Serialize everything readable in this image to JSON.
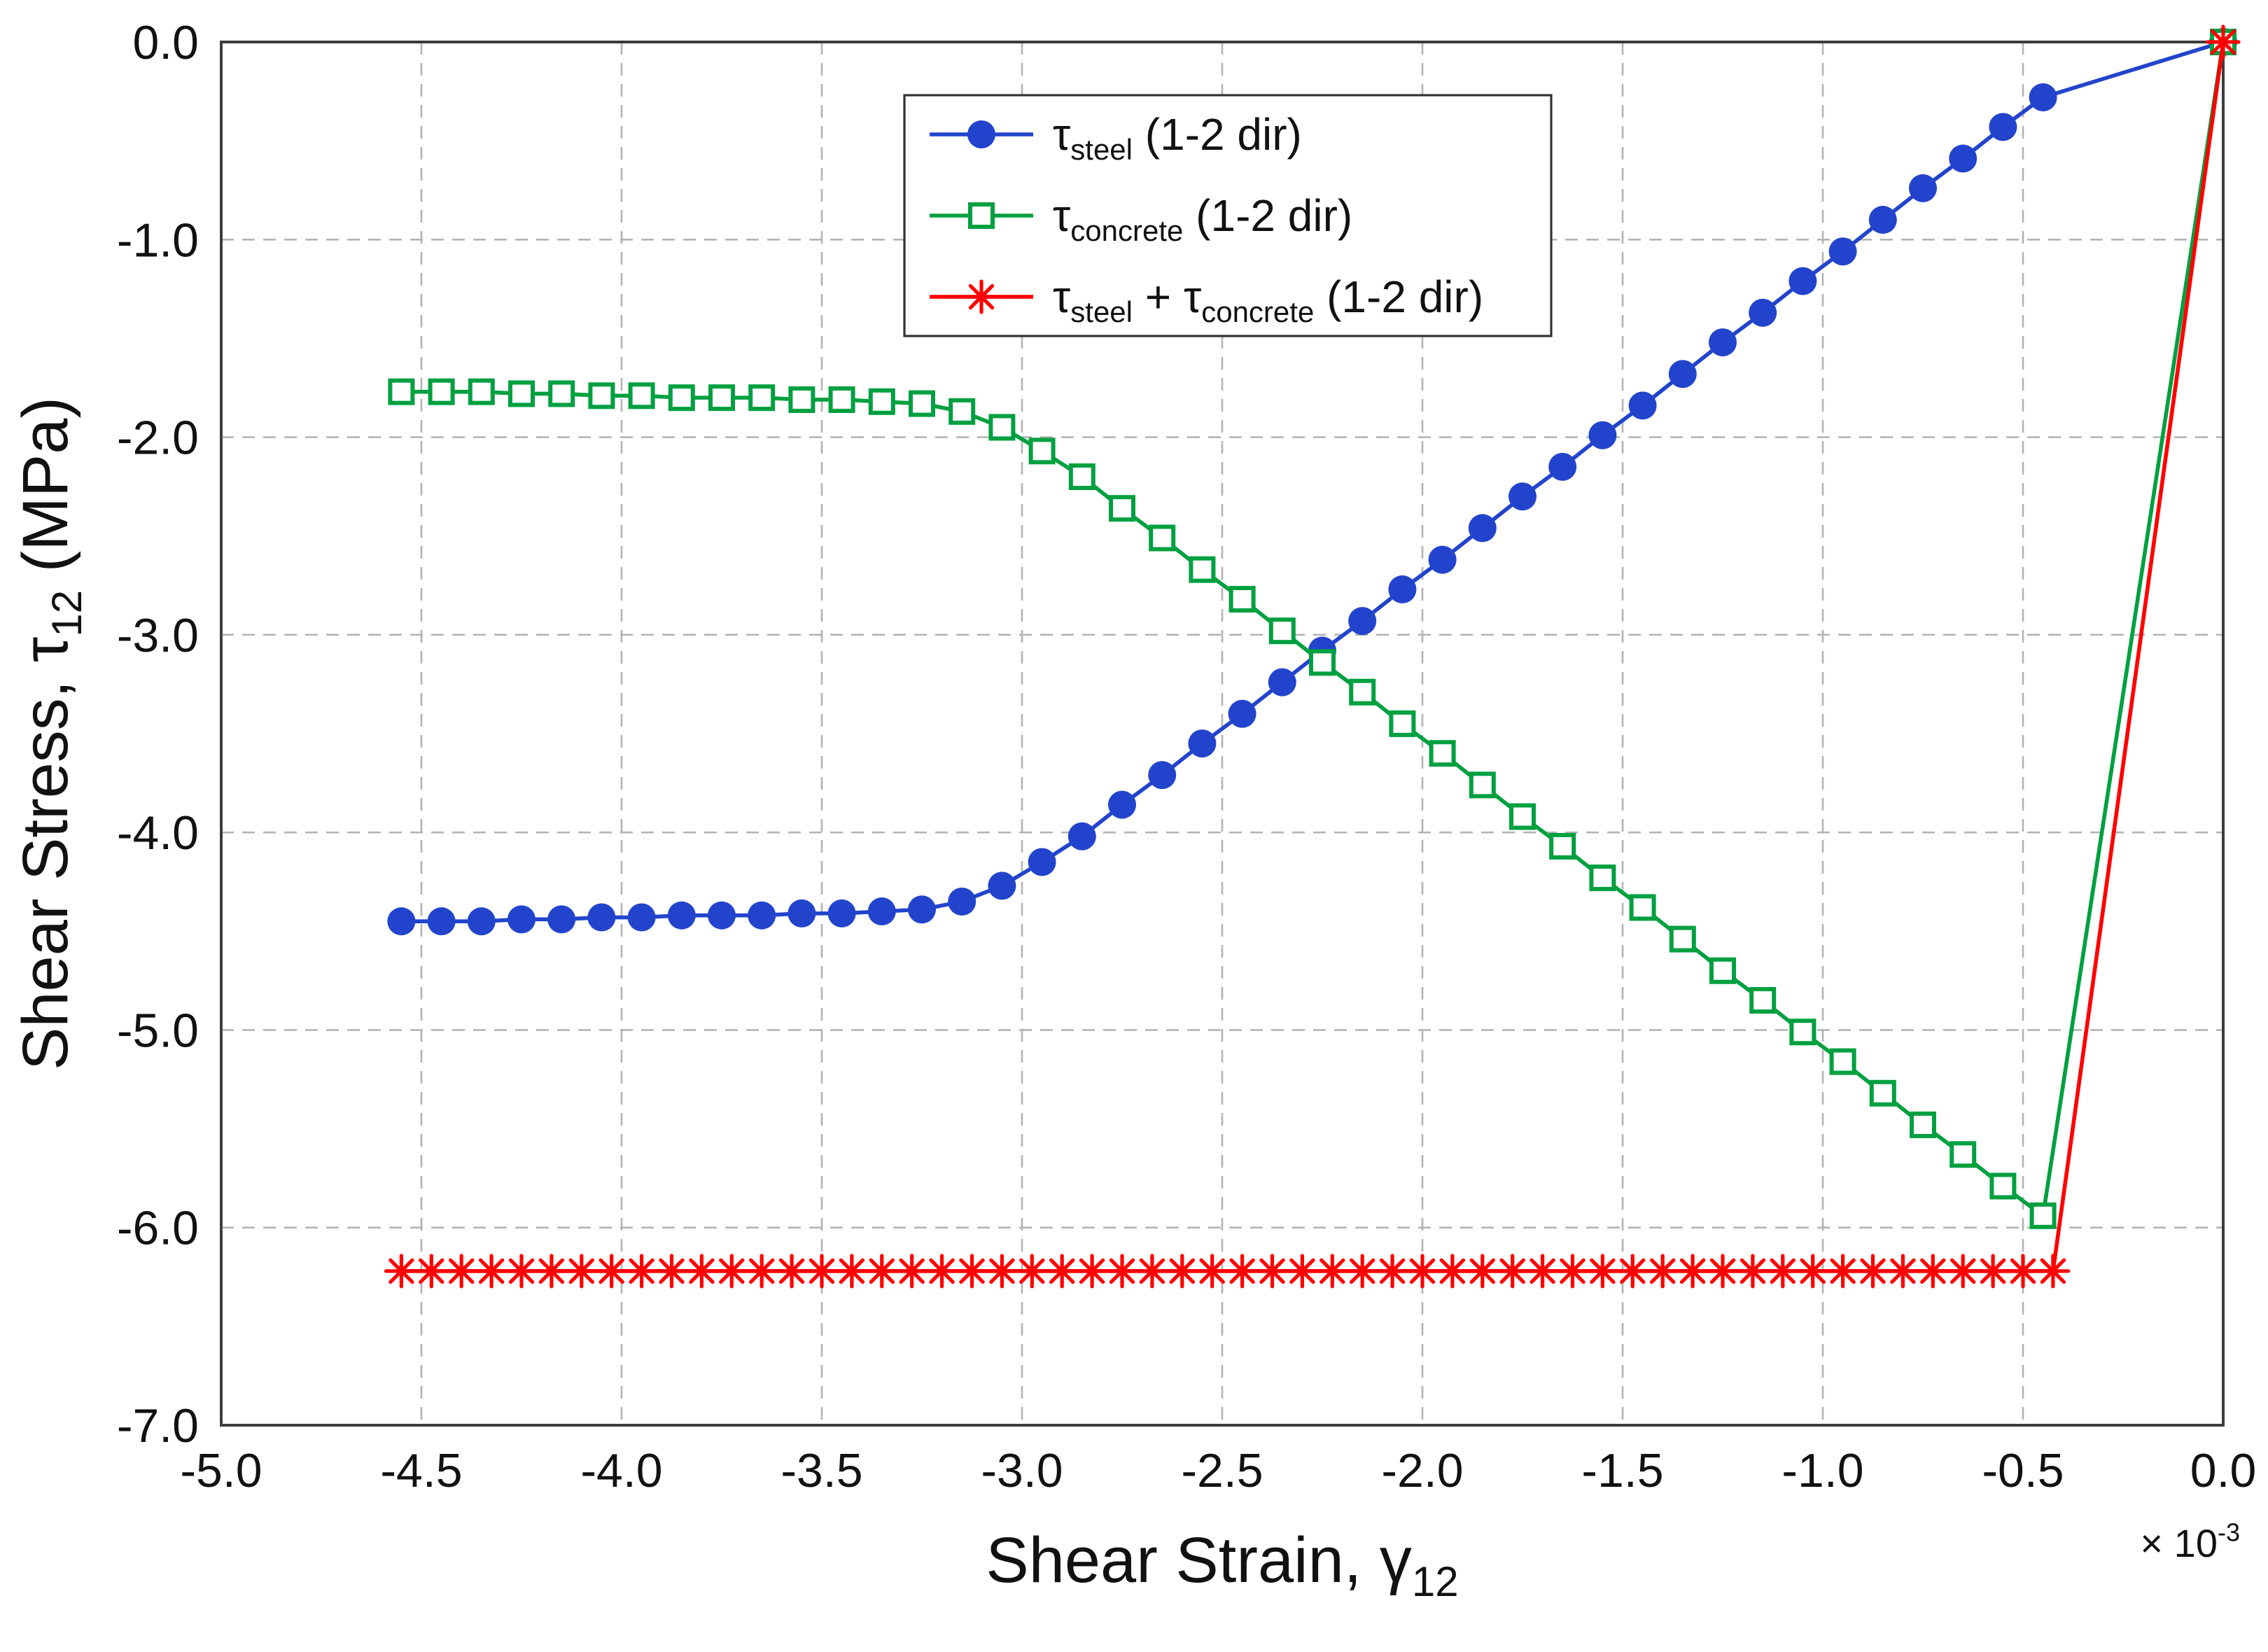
{
  "chart_data": {
    "type": "line",
    "title": "",
    "grid": true,
    "legend_position": "top-center",
    "xlim": [
      -5.0,
      0.0
    ],
    "ylim": [
      -7.0,
      0.0
    ],
    "x_ticks": [
      -5.0,
      -4.5,
      -4.0,
      -3.5,
      -3.0,
      -2.5,
      -2.0,
      -1.5,
      -1.0,
      -0.5,
      0.0
    ],
    "x_tick_labels": [
      "-5.0",
      "-4.5",
      "-4.0",
      "-3.5",
      "-3.0",
      "-2.5",
      "-2.0",
      "-1.5",
      "-1.0",
      "-0.5",
      "0.0"
    ],
    "y_ticks": [
      0.0,
      -1.0,
      -2.0,
      -3.0,
      -4.0,
      -5.0,
      -6.0,
      -7.0
    ],
    "y_tick_labels": [
      "0.0",
      "-1.0",
      "-2.0",
      "-3.0",
      "-4.0",
      "-5.0",
      "-6.0",
      "-7.0"
    ],
    "xlabel_parts": [
      {
        "t": "Shear Strain, γ"
      },
      {
        "t": "12",
        "sub": true
      }
    ],
    "ylabel_parts": [
      {
        "t": "Shear Stress,  τ"
      },
      {
        "t": "12",
        "sub": true
      },
      {
        "t": " (MPa)"
      }
    ],
    "x_multiplier_parts": [
      {
        "t": "× 10"
      },
      {
        "t": "-3",
        "sup": true
      }
    ],
    "colors": {
      "steel": "#2244cc",
      "concrete": "#00a040",
      "sum": "#ff0000",
      "grid": "#b3b3b3",
      "frame": "#3c3c3c",
      "legend_border": "#333333",
      "background": "#ffffff"
    },
    "legend": {
      "entries": [
        {
          "marker": "circle-filled",
          "color_key": "steel",
          "parts": [
            {
              "t": "τ"
            },
            {
              "t": "steel",
              "sub": true
            },
            {
              "t": " (1-2 dir)"
            }
          ]
        },
        {
          "marker": "square-open",
          "color_key": "concrete",
          "parts": [
            {
              "t": "τ"
            },
            {
              "t": "concrete",
              "sub": true
            },
            {
              "t": " (1-2 dir)"
            }
          ]
        },
        {
          "marker": "asterisk",
          "color_key": "sum",
          "parts": [
            {
              "t": "τ"
            },
            {
              "t": "steel",
              "sub": true
            },
            {
              "t": " + τ"
            },
            {
              "t": "concrete",
              "sub": true
            },
            {
              "t": " (1-2 dir)"
            }
          ]
        }
      ]
    },
    "series": [
      {
        "name": "tau_steel (1-2 dir)",
        "marker": "circle-filled",
        "color_key": "steel",
        "x": [
          -4.55,
          -4.45,
          -4.35,
          -4.25,
          -4.15,
          -4.05,
          -3.95,
          -3.85,
          -3.75,
          -3.65,
          -3.55,
          -3.45,
          -3.35,
          -3.25,
          -3.15,
          -3.05,
          -2.95,
          -2.85,
          -2.75,
          -2.65,
          -2.55,
          -2.45,
          -2.35,
          -2.25,
          -2.15,
          -2.05,
          -1.95,
          -1.85,
          -1.75,
          -1.65,
          -1.55,
          -1.45,
          -1.35,
          -1.25,
          -1.15,
          -1.05,
          -0.95,
          -0.85,
          -0.75,
          -0.65,
          -0.55,
          -0.45,
          0.0
        ],
        "y": [
          -4.45,
          -4.45,
          -4.45,
          -4.44,
          -4.44,
          -4.43,
          -4.43,
          -4.42,
          -4.42,
          -4.42,
          -4.41,
          -4.41,
          -4.4,
          -4.39,
          -4.35,
          -4.27,
          -4.15,
          -4.02,
          -3.86,
          -3.71,
          -3.55,
          -3.4,
          -3.24,
          -3.08,
          -2.93,
          -2.77,
          -2.62,
          -2.46,
          -2.3,
          -2.15,
          -1.99,
          -1.84,
          -1.68,
          -1.52,
          -1.37,
          -1.21,
          -1.06,
          -0.9,
          -0.74,
          -0.59,
          -0.43,
          -0.28,
          0.0
        ]
      },
      {
        "name": "tau_concrete (1-2 dir)",
        "marker": "square-open",
        "color_key": "concrete",
        "x": [
          -4.55,
          -4.45,
          -4.35,
          -4.25,
          -4.15,
          -4.05,
          -3.95,
          -3.85,
          -3.75,
          -3.65,
          -3.55,
          -3.45,
          -3.35,
          -3.25,
          -3.15,
          -3.05,
          -2.95,
          -2.85,
          -2.75,
          -2.65,
          -2.55,
          -2.45,
          -2.35,
          -2.25,
          -2.15,
          -2.05,
          -1.95,
          -1.85,
          -1.75,
          -1.65,
          -1.55,
          -1.45,
          -1.35,
          -1.25,
          -1.15,
          -1.05,
          -0.95,
          -0.85,
          -0.75,
          -0.65,
          -0.55,
          -0.45,
          0.0
        ],
        "y": [
          -1.77,
          -1.77,
          -1.77,
          -1.78,
          -1.78,
          -1.79,
          -1.79,
          -1.8,
          -1.8,
          -1.8,
          -1.81,
          -1.81,
          -1.82,
          -1.83,
          -1.87,
          -1.95,
          -2.07,
          -2.2,
          -2.36,
          -2.51,
          -2.67,
          -2.82,
          -2.98,
          -3.14,
          -3.29,
          -3.45,
          -3.6,
          -3.76,
          -3.92,
          -4.07,
          -4.23,
          -4.38,
          -4.54,
          -4.7,
          -4.85,
          -5.01,
          -5.16,
          -5.32,
          -5.48,
          -5.63,
          -5.79,
          -5.94,
          0.0
        ]
      },
      {
        "name": "tau_steel + tau_concrete (1-2 dir)",
        "marker": "asterisk",
        "color_key": "sum",
        "x": [
          -4.55,
          -4.475,
          -4.4,
          -4.325,
          -4.25,
          -4.175,
          -4.1,
          -4.025,
          -3.95,
          -3.875,
          -3.8,
          -3.725,
          -3.65,
          -3.575,
          -3.5,
          -3.425,
          -3.35,
          -3.275,
          -3.2,
          -3.125,
          -3.05,
          -2.975,
          -2.9,
          -2.825,
          -2.75,
          -2.675,
          -2.6,
          -2.525,
          -2.45,
          -2.375,
          -2.3,
          -2.225,
          -2.15,
          -2.075,
          -2.0,
          -1.925,
          -1.85,
          -1.775,
          -1.7,
          -1.625,
          -1.55,
          -1.475,
          -1.4,
          -1.325,
          -1.25,
          -1.175,
          -1.1,
          -1.025,
          -0.95,
          -0.875,
          -0.8,
          -0.725,
          -0.65,
          -0.575,
          -0.5,
          -0.425,
          0.0
        ],
        "y": [
          -6.22,
          -6.22,
          -6.22,
          -6.22,
          -6.22,
          -6.22,
          -6.22,
          -6.22,
          -6.22,
          -6.22,
          -6.22,
          -6.22,
          -6.22,
          -6.22,
          -6.22,
          -6.22,
          -6.22,
          -6.22,
          -6.22,
          -6.22,
          -6.22,
          -6.22,
          -6.22,
          -6.22,
          -6.22,
          -6.22,
          -6.22,
          -6.22,
          -6.22,
          -6.22,
          -6.22,
          -6.22,
          -6.22,
          -6.22,
          -6.22,
          -6.22,
          -6.22,
          -6.22,
          -6.22,
          -6.22,
          -6.22,
          -6.22,
          -6.22,
          -6.22,
          -6.22,
          -6.22,
          -6.22,
          -6.22,
          -6.22,
          -6.22,
          -6.22,
          -6.22,
          -6.22,
          -6.22,
          -6.22,
          -6.22,
          0.0
        ]
      }
    ]
  }
}
